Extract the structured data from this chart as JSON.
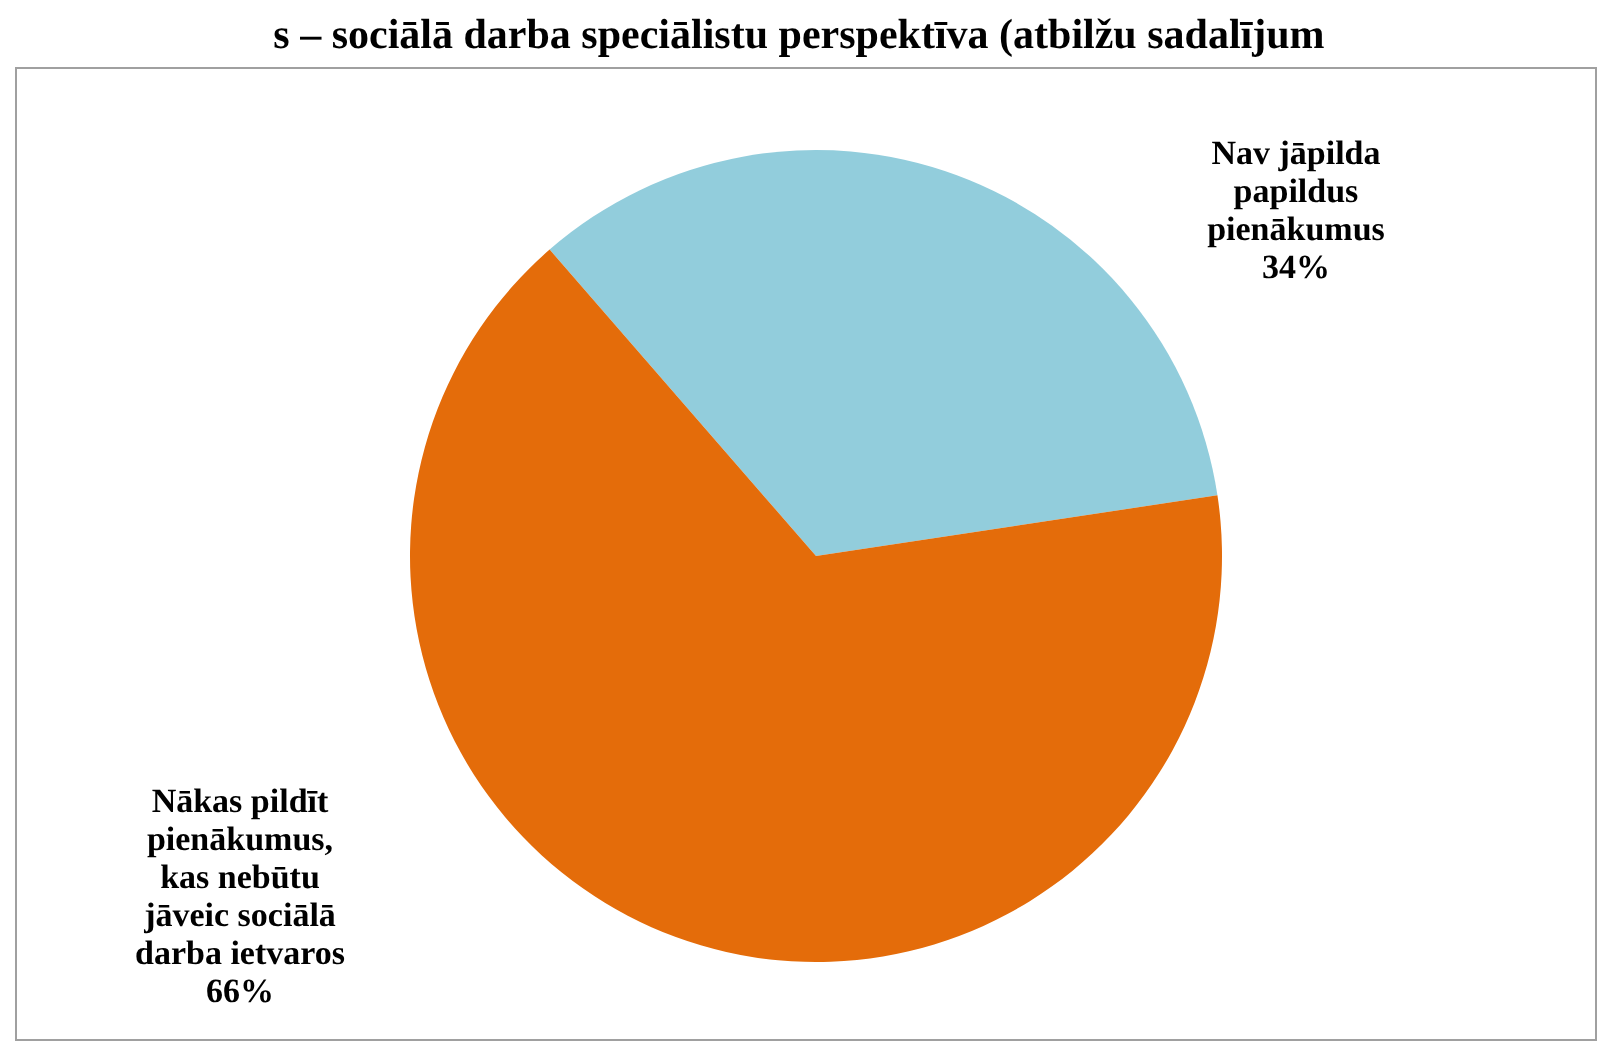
{
  "chart_data": {
    "type": "pie",
    "title": "s – sociālā darba speciālistu perspektīva (atbilžu sadalījum",
    "categories": [
      "Nav jāpilda papildus pienākumus",
      "Nākas pildīt pienākumus, kas nebūtu jāveic sociālā darba ietvaros"
    ],
    "values": [
      34,
      66
    ],
    "colors": [
      "#92cddc",
      "#e46c0a"
    ],
    "value_labels": [
      "34%",
      "66%"
    ]
  }
}
